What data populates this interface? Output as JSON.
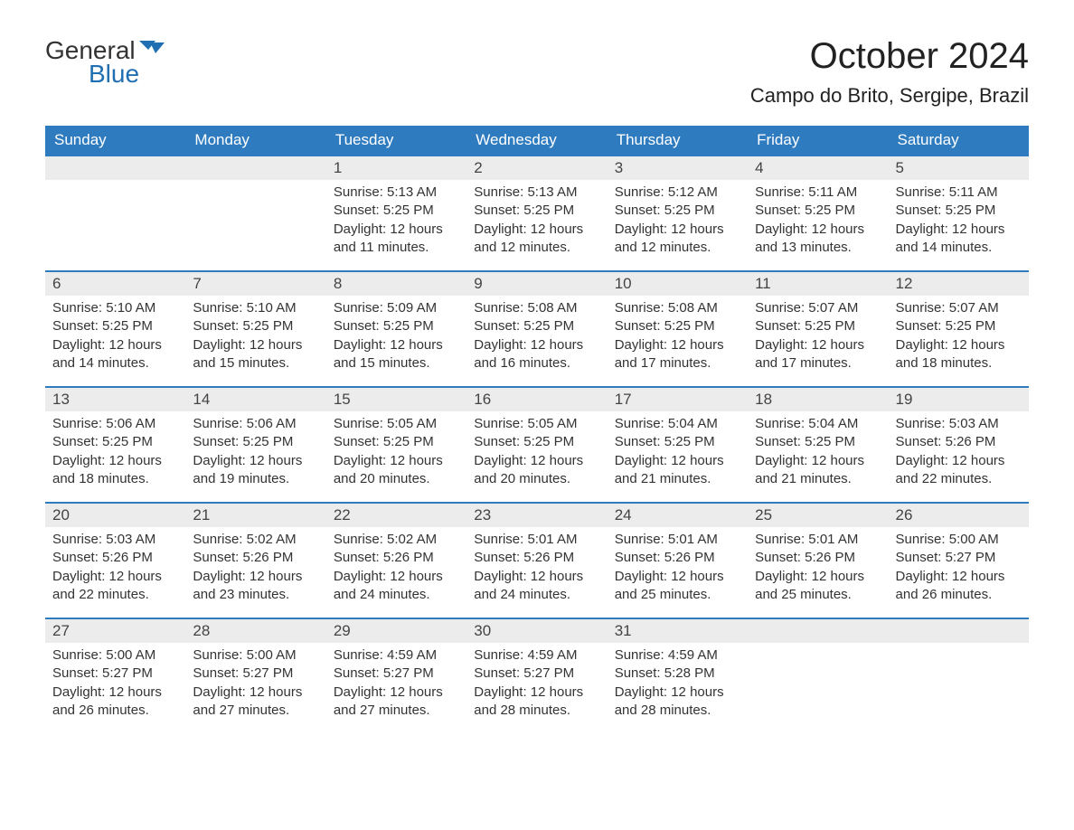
{
  "logo": {
    "text1": "General",
    "text2": "Blue",
    "flag_color": "#1f6fb2"
  },
  "title": "October 2024",
  "location": "Campo do Brito, Sergipe, Brazil",
  "colors": {
    "header_bg": "#2f7bbf",
    "header_text": "#ffffff",
    "daynum_bg": "#ececec",
    "row_border": "#2f7bbf",
    "body_text": "#333333",
    "logo_blue": "#1f6fb2"
  },
  "weekdays": [
    "Sunday",
    "Monday",
    "Tuesday",
    "Wednesday",
    "Thursday",
    "Friday",
    "Saturday"
  ],
  "weeks": [
    [
      null,
      null,
      {
        "n": "1",
        "sunrise": "5:13 AM",
        "sunset": "5:25 PM",
        "daylight": "12 hours and 11 minutes."
      },
      {
        "n": "2",
        "sunrise": "5:13 AM",
        "sunset": "5:25 PM",
        "daylight": "12 hours and 12 minutes."
      },
      {
        "n": "3",
        "sunrise": "5:12 AM",
        "sunset": "5:25 PM",
        "daylight": "12 hours and 12 minutes."
      },
      {
        "n": "4",
        "sunrise": "5:11 AM",
        "sunset": "5:25 PM",
        "daylight": "12 hours and 13 minutes."
      },
      {
        "n": "5",
        "sunrise": "5:11 AM",
        "sunset": "5:25 PM",
        "daylight": "12 hours and 14 minutes."
      }
    ],
    [
      {
        "n": "6",
        "sunrise": "5:10 AM",
        "sunset": "5:25 PM",
        "daylight": "12 hours and 14 minutes."
      },
      {
        "n": "7",
        "sunrise": "5:10 AM",
        "sunset": "5:25 PM",
        "daylight": "12 hours and 15 minutes."
      },
      {
        "n": "8",
        "sunrise": "5:09 AM",
        "sunset": "5:25 PM",
        "daylight": "12 hours and 15 minutes."
      },
      {
        "n": "9",
        "sunrise": "5:08 AM",
        "sunset": "5:25 PM",
        "daylight": "12 hours and 16 minutes."
      },
      {
        "n": "10",
        "sunrise": "5:08 AM",
        "sunset": "5:25 PM",
        "daylight": "12 hours and 17 minutes."
      },
      {
        "n": "11",
        "sunrise": "5:07 AM",
        "sunset": "5:25 PM",
        "daylight": "12 hours and 17 minutes."
      },
      {
        "n": "12",
        "sunrise": "5:07 AM",
        "sunset": "5:25 PM",
        "daylight": "12 hours and 18 minutes."
      }
    ],
    [
      {
        "n": "13",
        "sunrise": "5:06 AM",
        "sunset": "5:25 PM",
        "daylight": "12 hours and 18 minutes."
      },
      {
        "n": "14",
        "sunrise": "5:06 AM",
        "sunset": "5:25 PM",
        "daylight": "12 hours and 19 minutes."
      },
      {
        "n": "15",
        "sunrise": "5:05 AM",
        "sunset": "5:25 PM",
        "daylight": "12 hours and 20 minutes."
      },
      {
        "n": "16",
        "sunrise": "5:05 AM",
        "sunset": "5:25 PM",
        "daylight": "12 hours and 20 minutes."
      },
      {
        "n": "17",
        "sunrise": "5:04 AM",
        "sunset": "5:25 PM",
        "daylight": "12 hours and 21 minutes."
      },
      {
        "n": "18",
        "sunrise": "5:04 AM",
        "sunset": "5:25 PM",
        "daylight": "12 hours and 21 minutes."
      },
      {
        "n": "19",
        "sunrise": "5:03 AM",
        "sunset": "5:26 PM",
        "daylight": "12 hours and 22 minutes."
      }
    ],
    [
      {
        "n": "20",
        "sunrise": "5:03 AM",
        "sunset": "5:26 PM",
        "daylight": "12 hours and 22 minutes."
      },
      {
        "n": "21",
        "sunrise": "5:02 AM",
        "sunset": "5:26 PM",
        "daylight": "12 hours and 23 minutes."
      },
      {
        "n": "22",
        "sunrise": "5:02 AM",
        "sunset": "5:26 PM",
        "daylight": "12 hours and 24 minutes."
      },
      {
        "n": "23",
        "sunrise": "5:01 AM",
        "sunset": "5:26 PM",
        "daylight": "12 hours and 24 minutes."
      },
      {
        "n": "24",
        "sunrise": "5:01 AM",
        "sunset": "5:26 PM",
        "daylight": "12 hours and 25 minutes."
      },
      {
        "n": "25",
        "sunrise": "5:01 AM",
        "sunset": "5:26 PM",
        "daylight": "12 hours and 25 minutes."
      },
      {
        "n": "26",
        "sunrise": "5:00 AM",
        "sunset": "5:27 PM",
        "daylight": "12 hours and 26 minutes."
      }
    ],
    [
      {
        "n": "27",
        "sunrise": "5:00 AM",
        "sunset": "5:27 PM",
        "daylight": "12 hours and 26 minutes."
      },
      {
        "n": "28",
        "sunrise": "5:00 AM",
        "sunset": "5:27 PM",
        "daylight": "12 hours and 27 minutes."
      },
      {
        "n": "29",
        "sunrise": "4:59 AM",
        "sunset": "5:27 PM",
        "daylight": "12 hours and 27 minutes."
      },
      {
        "n": "30",
        "sunrise": "4:59 AM",
        "sunset": "5:27 PM",
        "daylight": "12 hours and 28 minutes."
      },
      {
        "n": "31",
        "sunrise": "4:59 AM",
        "sunset": "5:28 PM",
        "daylight": "12 hours and 28 minutes."
      },
      null,
      null
    ]
  ],
  "labels": {
    "sunrise": "Sunrise: ",
    "sunset": "Sunset: ",
    "daylight": "Daylight: "
  }
}
